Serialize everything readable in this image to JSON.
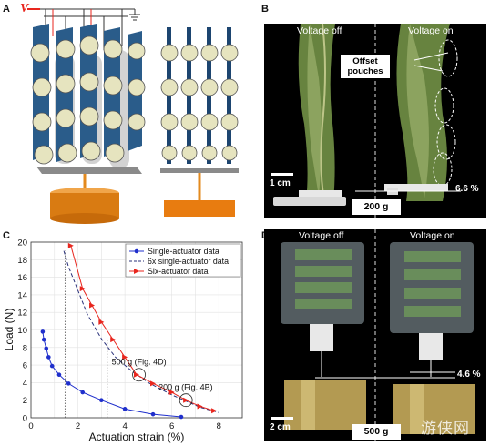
{
  "panels": {
    "a": {
      "letter": "A",
      "voltage_label": "V"
    },
    "b": {
      "letter": "B",
      "title_off": "Voltage off",
      "title_on": "Voltage on",
      "callout": "Offset pouches",
      "scale": "1 cm",
      "strain": "6.6 %",
      "weight": "200 g"
    },
    "c": {
      "letter": "C"
    },
    "d": {
      "letter": "D",
      "title_off": "Voltage off",
      "title_on": "Voltage on",
      "scale": "2 cm",
      "strain": "4.6 %",
      "weight": "500 g",
      "watermark": "游侠网"
    }
  },
  "colors": {
    "single": "#1f2fcc",
    "six": "#e8261e",
    "dashed": "#28307a",
    "photo_bg": "#000000",
    "actuator_blue": "#2a5c8a",
    "pouch_fill": "#e6e4bf",
    "mass_orange": "#e38a1e"
  },
  "chart_data": {
    "type": "scatter",
    "xlabel": "Actuation strain (%)",
    "ylabel": "Load (N)",
    "xlim": [
      0,
      9
    ],
    "ylim": [
      0,
      20
    ],
    "xticks": [
      0,
      2,
      4,
      6,
      8
    ],
    "yticks": [
      0,
      2,
      4,
      6,
      8,
      10,
      12,
      14,
      16,
      18,
      20
    ],
    "grid": true,
    "legend": "top-right",
    "series": [
      {
        "name": "Single-actuator data",
        "style": "circle-line",
        "x": [
          0.5,
          0.55,
          0.65,
          0.75,
          0.9,
          1.2,
          1.6,
          2.2,
          3.0,
          4.0,
          5.2,
          6.4
        ],
        "y": [
          9.8,
          8.9,
          7.9,
          6.9,
          5.9,
          4.9,
          3.9,
          2.9,
          2.0,
          1.0,
          0.4,
          0.1
        ]
      },
      {
        "name": "6x single-actuator data",
        "style": "dashed",
        "x": [
          1.4,
          1.6,
          2.0,
          2.4,
          3.0,
          3.6,
          4.3,
          5.0,
          6.0,
          7.2,
          8.0
        ],
        "y": [
          19.0,
          17.2,
          14.5,
          11.8,
          9.0,
          6.9,
          5.3,
          4.0,
          2.6,
          1.2,
          0.6
        ]
      },
      {
        "name": "Six-actuator data",
        "style": "triangle-line",
        "x": [
          1.7,
          2.2,
          2.6,
          3.0,
          3.5,
          4.0,
          4.5,
          5.2,
          6.0,
          6.6,
          7.2,
          7.8
        ],
        "y": [
          19.6,
          14.7,
          12.8,
          10.9,
          8.9,
          6.9,
          4.9,
          3.9,
          2.9,
          2.0,
          1.3,
          0.8
        ]
      }
    ],
    "annotations": [
      {
        "text": "500 g (Fig. 4D)",
        "x": 4.6,
        "y": 4.9
      },
      {
        "text": "200 g (Fig. 4B)",
        "x": 6.6,
        "y": 2.0
      }
    ]
  }
}
